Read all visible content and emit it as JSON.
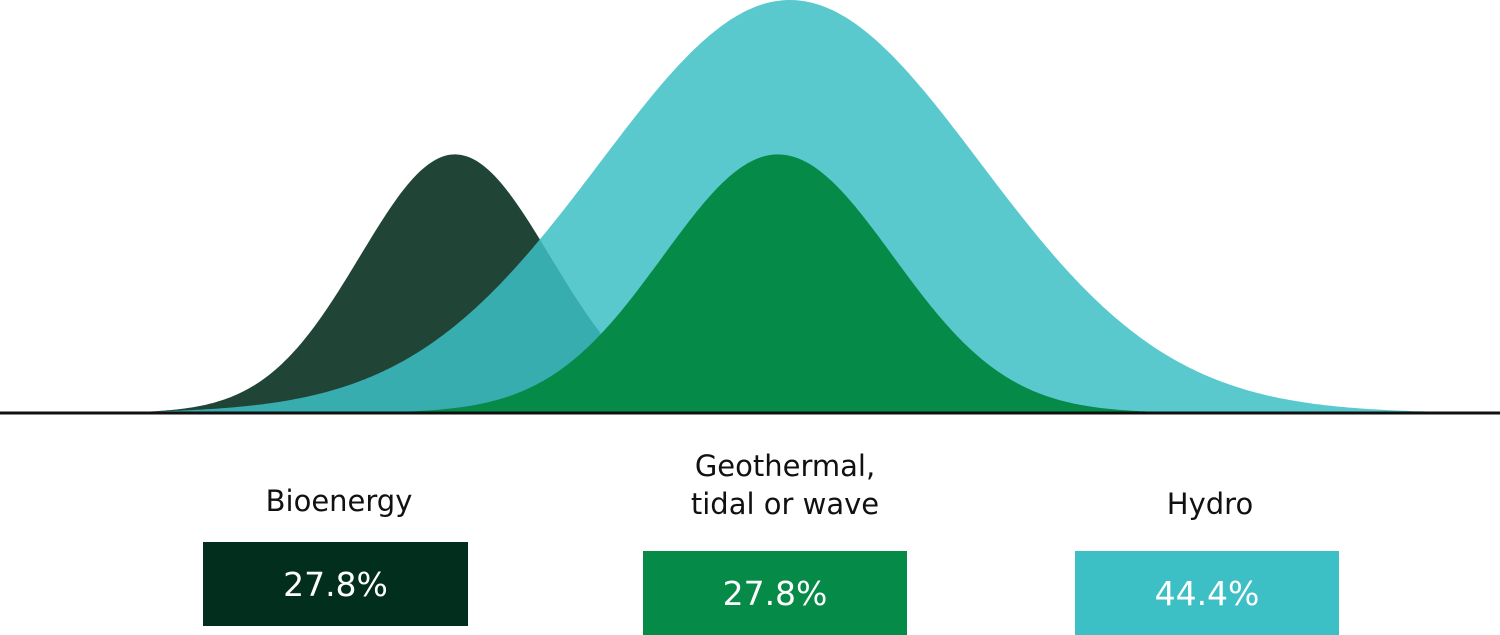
{
  "chart_data": {
    "type": "area",
    "title": "",
    "xlabel": "",
    "ylabel": "",
    "grid": false,
    "legend": "none",
    "series": [
      {
        "name": "Bioenergy",
        "value": 27.8,
        "label": "27.8%",
        "curve_color": "#204537",
        "box_color": "#022e1e"
      },
      {
        "name": "Geothermal,\ntidal or wave",
        "value": 27.8,
        "label": "27.8%",
        "curve_color": "#058a47",
        "box_color": "#058a47"
      },
      {
        "name": "Hydro",
        "value": 44.4,
        "label": "44.4%",
        "curve_color": "#3dbfc6",
        "box_color": "#3dbfc6"
      }
    ]
  }
}
